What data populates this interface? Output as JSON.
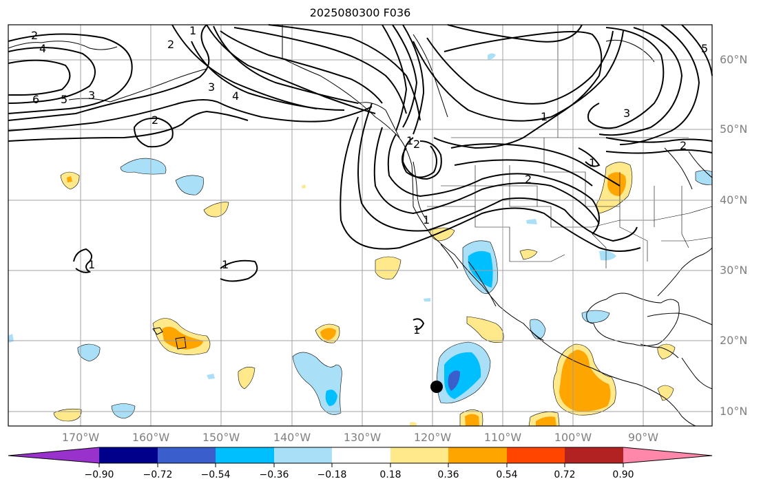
{
  "title": "2025080300 F036",
  "lat_labels": [
    "60°N",
    "50°N",
    "40°N",
    "30°N",
    "20°N",
    "10°N"
  ],
  "lon_labels": [
    "170°W",
    "160°W",
    "150°W",
    "140°W",
    "130°W",
    "120°W",
    "110°W",
    "100°W",
    "90°W"
  ],
  "contour_labels": [
    "2",
    "4",
    "6",
    "5",
    "3",
    "2",
    "1",
    "2",
    "3",
    "4",
    "1",
    "2",
    "1",
    "3",
    "2",
    "5",
    "1",
    "2",
    "1",
    "1",
    "1",
    "1"
  ],
  "colorbar": {
    "ticks": [
      "−0.90",
      "−0.72",
      "−0.54",
      "−0.36",
      "−0.18",
      "0.18",
      "0.36",
      "0.54",
      "0.72",
      "0.90"
    ],
    "colors": [
      "#9932cc",
      "#00008b",
      "#3a5fcd",
      "#00bfff",
      "#aadff8",
      "#ffffff",
      "#ffe98a",
      "#ffa500",
      "#ff4500",
      "#b22222",
      "#ff88aa"
    ]
  },
  "marker": {
    "label": "",
    "lat": 13.5,
    "lon": -119.5
  }
}
